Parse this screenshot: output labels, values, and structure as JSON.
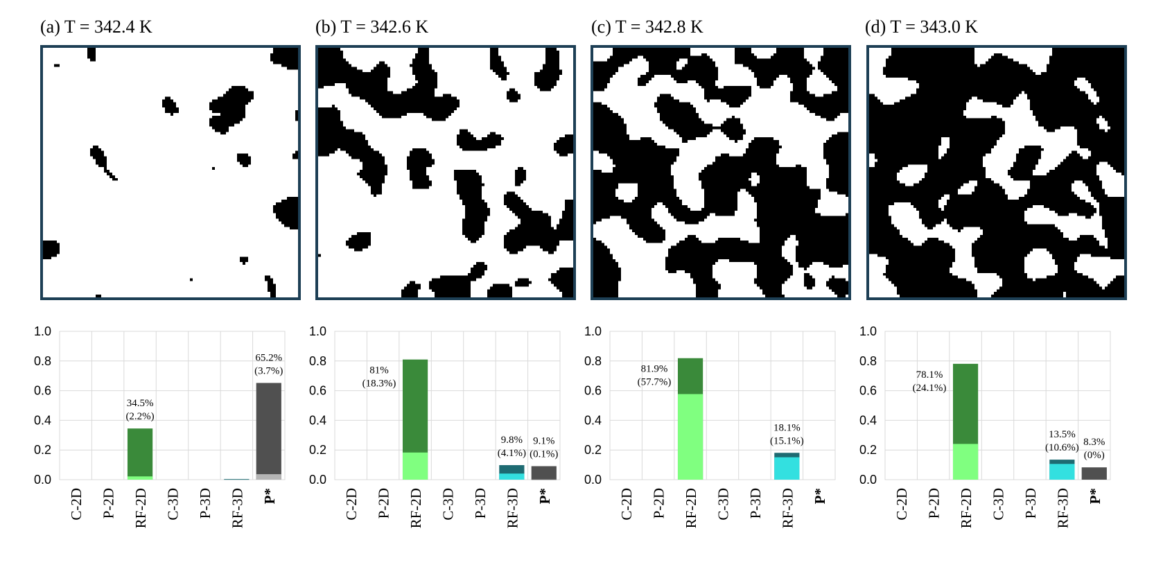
{
  "colors": {
    "frame": "#1d3f55",
    "grid": "#d9d9d9",
    "rf2d_total": "#3a8a3a",
    "rf2d_inner": "#80ff80",
    "rf3d_total": "#1e6b72",
    "rf3d_inner": "#33e0e0",
    "pstar_total": "#505050",
    "pstar_inner": "#b5b5b5"
  },
  "panels": [
    {
      "title": "(a) T = 342.4 K",
      "black_fraction": 0.06,
      "seed": 11
    },
    {
      "title": "(b) T = 342.6 K",
      "black_fraction": 0.28,
      "seed": 23
    },
    {
      "title": "(c) T = 342.8 K",
      "black_fraction": 0.55,
      "seed": 37
    },
    {
      "title": "(d) T = 343.0 K",
      "black_fraction": 0.72,
      "seed": 51
    }
  ],
  "chart_data": [
    {
      "type": "bar",
      "categories": [
        "C-2D",
        "P-2D",
        "RF-2D",
        "C-3D",
        "P-3D",
        "RF-3D",
        "P*"
      ],
      "ylim": [
        0,
        1.0
      ],
      "yticks": [
        "0.0",
        "0.2",
        "0.4",
        "0.6",
        "0.8",
        "1.0"
      ],
      "grid": true,
      "series": [
        {
          "values": [
            0,
            0,
            0.345,
            0,
            0,
            0.004,
            0.652
          ]
        },
        {
          "values": [
            0,
            0,
            0.022,
            0,
            0,
            0,
            0.037
          ]
        }
      ],
      "labels": [
        {
          "category": "RF-2D",
          "lines": [
            "34.5%",
            "(2.2%)"
          ]
        },
        {
          "category": "P*",
          "lines": [
            "65.2%",
            "(3.7%)"
          ]
        }
      ]
    },
    {
      "type": "bar",
      "categories": [
        "C-2D",
        "P-2D",
        "RF-2D",
        "C-3D",
        "P-3D",
        "RF-3D",
        "P*"
      ],
      "ylim": [
        0,
        1.0
      ],
      "yticks": [
        "0.0",
        "0.2",
        "0.4",
        "0.6",
        "0.8",
        "1.0"
      ],
      "grid": true,
      "series": [
        {
          "values": [
            0,
            0,
            0.81,
            0,
            0,
            0.098,
            0.091
          ]
        },
        {
          "values": [
            0,
            0,
            0.183,
            0,
            0,
            0.041,
            0.001
          ]
        }
      ],
      "labels": [
        {
          "category": "RF-2D",
          "lines": [
            "81%",
            "(18.3%)"
          ],
          "side": "left"
        },
        {
          "category": "RF-3D",
          "lines": [
            "9.8%",
            "(4.1%)"
          ]
        },
        {
          "category": "P*",
          "lines": [
            "9.1%",
            "(0.1%)"
          ]
        }
      ]
    },
    {
      "type": "bar",
      "categories": [
        "C-2D",
        "P-2D",
        "RF-2D",
        "C-3D",
        "P-3D",
        "RF-3D",
        "P*"
      ],
      "ylim": [
        0,
        1.0
      ],
      "yticks": [
        "0.0",
        "0.2",
        "0.4",
        "0.6",
        "0.8",
        "1.0"
      ],
      "grid": true,
      "series": [
        {
          "values": [
            0,
            0,
            0.819,
            0,
            0,
            0.181,
            0
          ]
        },
        {
          "values": [
            0,
            0,
            0.577,
            0,
            0,
            0.151,
            0
          ]
        }
      ],
      "labels": [
        {
          "category": "RF-2D",
          "lines": [
            "81.9%",
            "(57.7%)"
          ],
          "side": "left"
        },
        {
          "category": "RF-3D",
          "lines": [
            "18.1%",
            "(15.1%)"
          ]
        }
      ]
    },
    {
      "type": "bar",
      "categories": [
        "C-2D",
        "P-2D",
        "RF-2D",
        "C-3D",
        "P-3D",
        "RF-3D",
        "P*"
      ],
      "ylim": [
        0,
        1.0
      ],
      "yticks": [
        "0.0",
        "0.2",
        "0.4",
        "0.6",
        "0.8",
        "1.0"
      ],
      "grid": true,
      "series": [
        {
          "values": [
            0,
            0,
            0.781,
            0,
            0,
            0.135,
            0.083
          ]
        },
        {
          "values": [
            0,
            0,
            0.241,
            0,
            0,
            0.106,
            0
          ]
        }
      ],
      "labels": [
        {
          "category": "RF-2D",
          "lines": [
            "78.1%",
            "(24.1%)"
          ],
          "side": "left"
        },
        {
          "category": "RF-3D",
          "lines": [
            "13.5%",
            "(10.6%)"
          ]
        },
        {
          "category": "P*",
          "lines": [
            "8.3%",
            "(0%)"
          ]
        }
      ]
    }
  ]
}
